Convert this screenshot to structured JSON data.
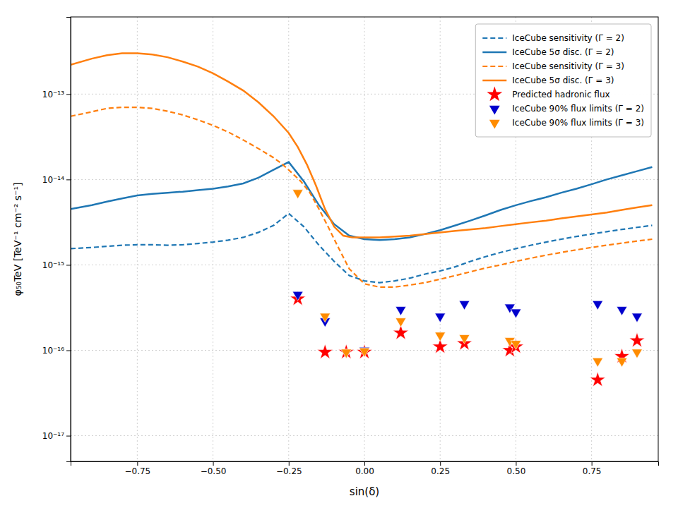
{
  "chart_data": {
    "type": "line",
    "xlabel": "sin(δ)",
    "ylabel": "φ₅₀TeV [TeV⁻¹ cm⁻² s⁻¹]",
    "log": "y",
    "grid": true,
    "legend": "upper right",
    "xlim": [
      -0.97,
      0.97
    ],
    "ylim": [
      5e-18,
      8e-13
    ],
    "xticks": [
      {
        "value": -0.75,
        "label": "−0.75"
      },
      {
        "value": -0.5,
        "label": "−0.50"
      },
      {
        "value": -0.25,
        "label": "−0.25"
      },
      {
        "value": 0,
        "label": "0.00"
      },
      {
        "value": 0.25,
        "label": "0.25"
      },
      {
        "value": 0.5,
        "label": "0.50"
      },
      {
        "value": 0.75,
        "label": "0.75"
      }
    ],
    "yticks": [
      {
        "value": 1e-17,
        "label": "10⁻¹⁷"
      },
      {
        "value": 1e-16,
        "label": "10⁻¹⁶"
      },
      {
        "value": 1e-15,
        "label": "10⁻¹⁵"
      },
      {
        "value": 1e-14,
        "label": "10⁻¹⁴"
      },
      {
        "value": 1e-13,
        "label": "10⁻¹³"
      }
    ],
    "series": [
      {
        "name": "IceCube sensitivity (Γ = 2)",
        "type": "line",
        "line_style": "dashed",
        "color": "#1f77b4",
        "x": [
          -0.97,
          -0.9,
          -0.85,
          -0.8,
          -0.75,
          -0.7,
          -0.65,
          -0.6,
          -0.55,
          -0.5,
          -0.45,
          -0.4,
          -0.35,
          -0.3,
          -0.25,
          -0.2,
          -0.15,
          -0.1,
          -0.05,
          0.0,
          0.05,
          0.1,
          0.15,
          0.2,
          0.25,
          0.3,
          0.35,
          0.4,
          0.45,
          0.5,
          0.55,
          0.6,
          0.65,
          0.7,
          0.75,
          0.8,
          0.85,
          0.9,
          0.95
        ],
        "values": [
          1.55e-15,
          1.6e-15,
          1.65e-15,
          1.7e-15,
          1.72e-15,
          1.72e-15,
          1.7e-15,
          1.72e-15,
          1.78e-15,
          1.85e-15,
          1.95e-15,
          2.1e-15,
          2.4e-15,
          2.9e-15,
          4e-15,
          2.8e-15,
          1.7e-15,
          1.1e-15,
          7.5e-16,
          6.5e-16,
          6.2e-16,
          6.5e-16,
          7e-16,
          7.8e-16,
          8.5e-16,
          9.5e-16,
          1.1e-15,
          1.25e-15,
          1.4e-15,
          1.55e-15,
          1.7e-15,
          1.85e-15,
          2e-15,
          2.15e-15,
          2.3e-15,
          2.45e-15,
          2.6e-15,
          2.75e-15,
          2.9e-15
        ]
      },
      {
        "name": "IceCube 5σ disc. (Γ = 2)",
        "type": "line",
        "line_style": "solid",
        "color": "#1f77b4",
        "x": [
          -0.97,
          -0.9,
          -0.85,
          -0.8,
          -0.75,
          -0.7,
          -0.65,
          -0.6,
          -0.55,
          -0.5,
          -0.45,
          -0.4,
          -0.35,
          -0.3,
          -0.25,
          -0.2,
          -0.15,
          -0.1,
          -0.05,
          0.0,
          0.05,
          0.1,
          0.15,
          0.2,
          0.25,
          0.3,
          0.35,
          0.4,
          0.45,
          0.5,
          0.55,
          0.6,
          0.65,
          0.7,
          0.75,
          0.8,
          0.85,
          0.9,
          0.95
        ],
        "values": [
          4.5e-15,
          5e-15,
          5.5e-15,
          6e-15,
          6.5e-15,
          6.8e-15,
          7e-15,
          7.2e-15,
          7.5e-15,
          7.8e-15,
          8.3e-15,
          9e-15,
          1.05e-14,
          1.3e-14,
          1.6e-14,
          9.5e-15,
          5e-15,
          3e-15,
          2.2e-15,
          2e-15,
          1.95e-15,
          2e-15,
          2.1e-15,
          2.3e-15,
          2.55e-15,
          2.9e-15,
          3.3e-15,
          3.8e-15,
          4.4e-15,
          5e-15,
          5.6e-15,
          6.2e-15,
          7e-15,
          7.8e-15,
          8.8e-15,
          1e-14,
          1.12e-14,
          1.25e-14,
          1.4e-14
        ]
      },
      {
        "name": "IceCube sensitivity (Γ = 3)",
        "type": "line",
        "line_style": "dashed",
        "color": "#ff7f0e",
        "x": [
          -0.97,
          -0.9,
          -0.85,
          -0.8,
          -0.75,
          -0.7,
          -0.65,
          -0.6,
          -0.55,
          -0.5,
          -0.45,
          -0.4,
          -0.35,
          -0.3,
          -0.27,
          -0.24,
          -0.21,
          -0.18,
          -0.15,
          -0.12,
          -0.09,
          -0.05,
          0.0,
          0.05,
          0.1,
          0.15,
          0.2,
          0.25,
          0.3,
          0.35,
          0.4,
          0.45,
          0.5,
          0.55,
          0.6,
          0.65,
          0.7,
          0.75,
          0.8,
          0.85,
          0.9,
          0.95
        ],
        "values": [
          5.5e-14,
          6.2e-14,
          6.8e-14,
          7e-14,
          7e-14,
          6.8e-14,
          6.3e-14,
          5.7e-14,
          5e-14,
          4.3e-14,
          3.6e-14,
          2.9e-14,
          2.3e-14,
          1.8e-14,
          1.5e-14,
          1.2e-14,
          9.5e-15,
          7e-15,
          4.5e-15,
          2.8e-15,
          1.7e-15,
          9e-16,
          6e-16,
          5.5e-16,
          5.5e-16,
          5.8e-16,
          6.2e-16,
          6.8e-16,
          7.5e-16,
          8.3e-16,
          9.2e-16,
          1e-15,
          1.1e-15,
          1.2e-15,
          1.3e-15,
          1.4e-15,
          1.5e-15,
          1.6e-15,
          1.7e-15,
          1.8e-15,
          1.9e-15,
          2e-15
        ]
      },
      {
        "name": "IceCube 5σ disc. (Γ = 3)",
        "type": "line",
        "line_style": "solid",
        "color": "#ff7f0e",
        "x": [
          -0.97,
          -0.9,
          -0.85,
          -0.8,
          -0.75,
          -0.7,
          -0.65,
          -0.6,
          -0.55,
          -0.5,
          -0.45,
          -0.4,
          -0.35,
          -0.3,
          -0.25,
          -0.22,
          -0.19,
          -0.16,
          -0.13,
          -0.1,
          -0.07,
          -0.04,
          -0.01,
          0.02,
          0.05,
          0.1,
          0.15,
          0.2,
          0.25,
          0.3,
          0.35,
          0.4,
          0.45,
          0.5,
          0.55,
          0.6,
          0.65,
          0.7,
          0.75,
          0.8,
          0.85,
          0.9,
          0.95
        ],
        "values": [
          2.2e-13,
          2.6e-13,
          2.85e-13,
          3e-13,
          3e-13,
          2.9e-13,
          2.7e-13,
          2.4e-13,
          2.1e-13,
          1.75e-13,
          1.4e-13,
          1.1e-13,
          8e-14,
          5.5e-14,
          3.5e-14,
          2.4e-14,
          1.5e-14,
          8.5e-15,
          4.5e-15,
          2.8e-15,
          2.2e-15,
          2.1e-15,
          2.1e-15,
          2.1e-15,
          2.1e-15,
          2.15e-15,
          2.2e-15,
          2.3e-15,
          2.4e-15,
          2.5e-15,
          2.6e-15,
          2.7e-15,
          2.85e-15,
          3e-15,
          3.15e-15,
          3.3e-15,
          3.5e-15,
          3.7e-15,
          3.9e-15,
          4.1e-15,
          4.4e-15,
          4.7e-15,
          5e-15
        ]
      },
      {
        "name": "Predicted hadronic flux",
        "type": "scatter",
        "marker": "star",
        "color": "#ff0000",
        "x": [
          -0.22,
          -0.13,
          -0.06,
          0.0,
          0.12,
          0.25,
          0.33,
          0.48,
          0.5,
          0.77,
          0.85,
          0.9
        ],
        "values": [
          4e-16,
          9.5e-17,
          9.5e-17,
          9.5e-17,
          1.6e-16,
          1.1e-16,
          1.2e-16,
          1e-16,
          1.1e-16,
          4.5e-17,
          8.5e-17,
          1.3e-16
        ]
      },
      {
        "name": "IceCube 90% flux limits (Γ = 2)",
        "type": "scatter",
        "marker": "triangle_down",
        "color": "#0000cd",
        "x": [
          -0.22,
          -0.13,
          -0.06,
          0.0,
          0.12,
          0.25,
          0.33,
          0.48,
          0.5,
          0.77,
          0.85,
          0.9
        ],
        "values": [
          4.5e-16,
          2.2e-16,
          9.5e-17,
          1e-16,
          3e-16,
          2.5e-16,
          3.5e-16,
          3.2e-16,
          2.8e-16,
          3.5e-16,
          3e-16,
          2.5e-16
        ]
      },
      {
        "name": "IceCube 90% flux limits (Γ = 3)",
        "type": "scatter",
        "marker": "triangle_down",
        "color": "#ff8c00",
        "x": [
          -0.22,
          -0.13,
          -0.06,
          0.0,
          0.12,
          0.25,
          0.33,
          0.48,
          0.5,
          0.77,
          0.85,
          0.9
        ],
        "values": [
          7e-15,
          2.5e-16,
          9.5e-17,
          9.8e-17,
          2.2e-16,
          1.5e-16,
          1.4e-16,
          1.3e-16,
          1.2e-16,
          7.5e-17,
          7.5e-17,
          9.5e-17
        ]
      }
    ]
  }
}
